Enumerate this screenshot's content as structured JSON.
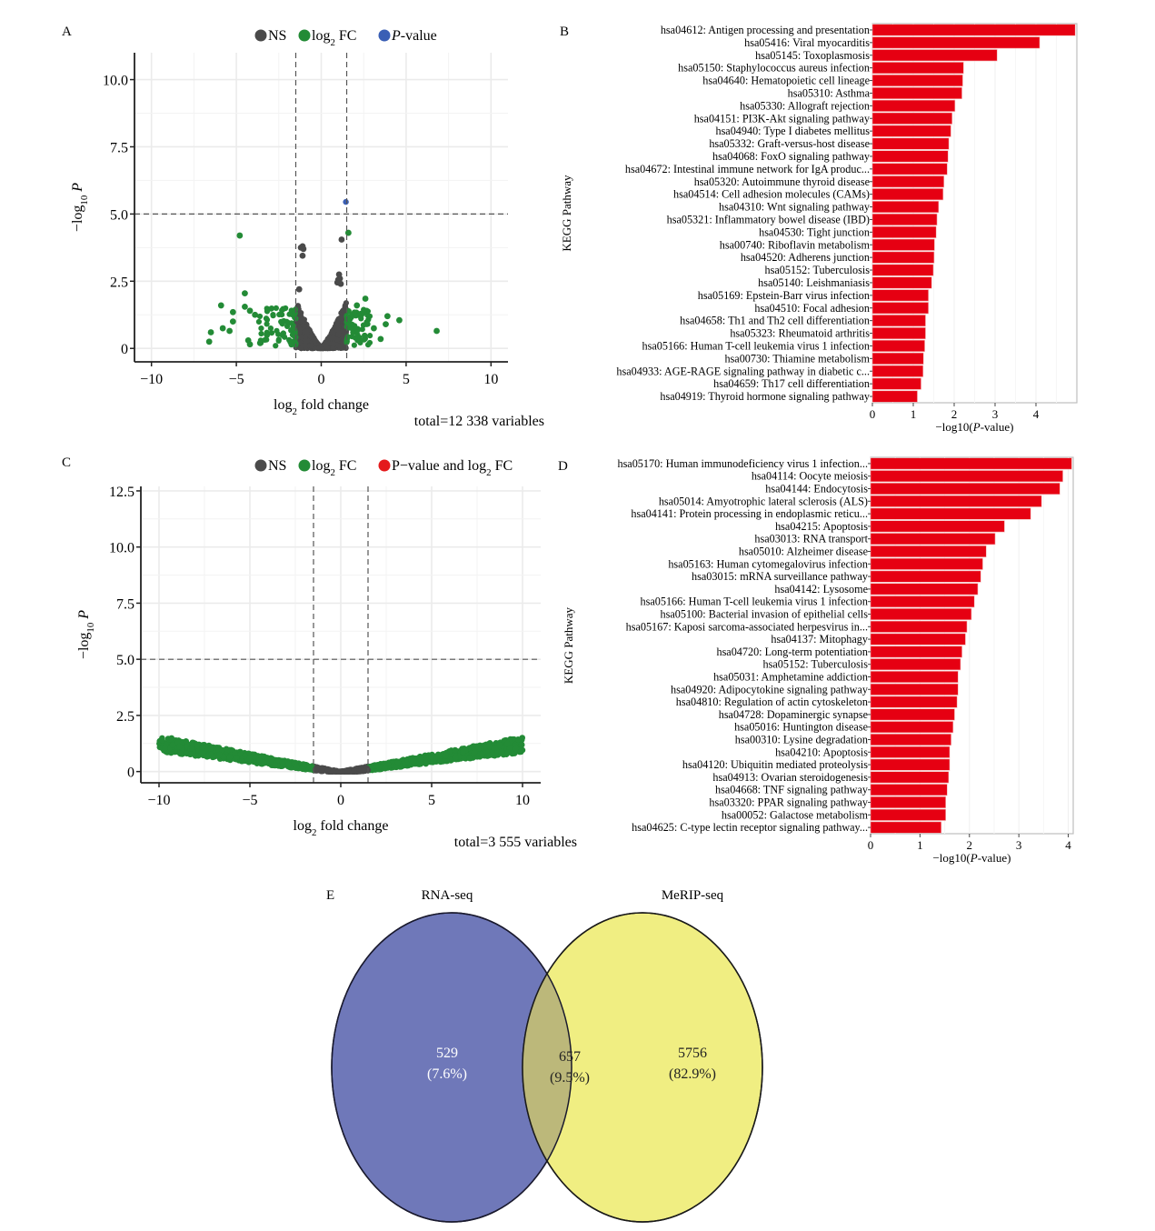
{
  "chart_data": [
    {
      "panel": "A",
      "type": "scatter",
      "subtype": "volcano",
      "legend": [
        {
          "label": "NS",
          "color": "#4a4a4a"
        },
        {
          "label": "log2 FC",
          "color": "#238b36"
        },
        {
          "label": "P-value",
          "color": "#3a5fb5"
        }
      ],
      "legend_placement": "top",
      "xlabel": "log2 fold change",
      "ylabel": "-log10 P",
      "caption": "total=12 338 variables",
      "xlim": [
        -11,
        11
      ],
      "ylim": [
        -0.5,
        11
      ],
      "xticks": [
        -10,
        -5,
        0,
        5,
        10
      ],
      "xtick_labels": [
        "−10",
        "−5",
        "0",
        "5",
        "10"
      ],
      "yticks": [
        0,
        2.5,
        5.0,
        7.5,
        10.0
      ],
      "ytick_labels": [
        "0",
        "2.5",
        "5.0",
        "7.5",
        "10.0"
      ],
      "thresholds": {
        "fc": [
          -1.5,
          1.5
        ],
        "p": 5.0
      },
      "grid": true,
      "points": {
        "ns": [
          [
            -1.1,
            3.8
          ],
          [
            -1.2,
            3.75
          ],
          [
            -1.05,
            3.7
          ],
          [
            -1.1,
            3.45
          ],
          [
            -1.3,
            2.2
          ],
          [
            1.2,
            4.05
          ],
          [
            1.05,
            2.75
          ],
          [
            1.1,
            2.6
          ],
          [
            1.0,
            2.55
          ],
          [
            1.15,
            2.4
          ],
          [
            0.95,
            2.45
          ]
        ],
        "fc": [
          [
            -4.8,
            4.2
          ],
          [
            1.6,
            4.3
          ],
          [
            -4.5,
            2.05
          ],
          [
            -5.9,
            1.6
          ],
          [
            -5.2,
            1.35
          ],
          [
            -5.2,
            1.0
          ],
          [
            -5.8,
            0.75
          ],
          [
            -5.4,
            0.65
          ],
          [
            -6.5,
            0.6
          ],
          [
            -6.6,
            0.25
          ],
          [
            -4.3,
            0.3
          ],
          [
            -4.2,
            0.15
          ],
          [
            -3.6,
            0.2
          ],
          [
            -4.5,
            1.55
          ],
          [
            -4.2,
            1.4
          ],
          [
            -3.9,
            1.25
          ],
          [
            -3.2,
            0.5
          ],
          [
            3.9,
            1.2
          ],
          [
            4.6,
            1.05
          ],
          [
            3.8,
            0.9
          ],
          [
            3.5,
            0.35
          ],
          [
            6.8,
            0.65
          ],
          [
            3.1,
            0.75
          ],
          [
            2.6,
            1.85
          ],
          [
            2.5,
            1.35
          ],
          [
            2.1,
            1.6
          ]
        ],
        "pvalue": [
          [
            1.45,
            5.45
          ]
        ]
      },
      "cloud": {
        "ns_fc_range": [
          -1.5,
          1.5
        ],
        "fc_left_range": [
          -3.5,
          -1.5
        ],
        "fc_right_range": [
          1.5,
          3.0
        ],
        "ymax_near": 1.9
      }
    },
    {
      "panel": "B",
      "type": "bar",
      "orientation": "horizontal",
      "xlabel": "−log10(P-value)",
      "ylabel": "KEGG Pathway",
      "xlim": [
        0,
        5
      ],
      "xticks": [
        0,
        1,
        2,
        3,
        4
      ],
      "bar_color": "#e60012",
      "categories": [
        "hsa04612: Antigen processing and presentation",
        "hsa05416: Viral myocarditis",
        "hsa05145: Toxoplasmosis",
        "hsa05150: Staphylococcus aureus infection",
        "hsa04640: Hematopoietic cell lineage",
        "hsa05310: Asthma",
        "hsa05330: Allograft rejection",
        "hsa04151: PI3K-Akt signaling pathway",
        "hsa04940: Type I diabetes mellitus",
        "hsa05332: Graft-versus-host disease",
        "hsa04068: FoxO signaling pathway",
        "hsa04672: Intestinal immune network for IgA produc...",
        "hsa05320: Autoimmune thyroid disease",
        "hsa04514: Cell adhesion molecules (CAMs)",
        "hsa04310: Wnt signaling pathway",
        "hsa05321: Inflammatory bowel disease (IBD)",
        "hsa04530: Tight junction",
        "hsa00740: Riboflavin metabolism",
        "hsa04520: Adherens junction",
        "hsa05152: Tuberculosis",
        "hsa05140: Leishmaniasis",
        "hsa05169: Epstein-Barr virus infection",
        "hsa04510: Focal adhesion",
        "hsa04658: Th1 and Th2 cell differentiation",
        "hsa05323: Rheumatoid arthritis",
        "hsa05166: Human T-cell leukemia virus 1 infection",
        "hsa00730: Thiamine metabolism",
        "hsa04933: AGE-RAGE signaling pathway in diabetic c...",
        "hsa04659: Th17 cell differentiation",
        "hsa04919: Thyroid hormone signaling pathway"
      ],
      "values": [
        4.96,
        4.09,
        3.05,
        2.23,
        2.21,
        2.19,
        2.02,
        1.95,
        1.92,
        1.87,
        1.85,
        1.83,
        1.75,
        1.73,
        1.62,
        1.58,
        1.56,
        1.52,
        1.51,
        1.49,
        1.45,
        1.37,
        1.37,
        1.3,
        1.3,
        1.28,
        1.25,
        1.24,
        1.19,
        1.1
      ]
    },
    {
      "panel": "C",
      "type": "scatter",
      "subtype": "volcano",
      "legend": [
        {
          "label": "NS",
          "color": "#4a4a4a"
        },
        {
          "label": "log2 FC",
          "color": "#238b36"
        },
        {
          "label": "P-value and log2 FC",
          "color": "#e41a1c"
        }
      ],
      "legend_placement": "top",
      "xlabel": "log2 fold change",
      "ylabel": "-log10 P",
      "caption": "total=3 555 variables",
      "xlim": [
        -11,
        11
      ],
      "ylim": [
        -0.5,
        12.7
      ],
      "xticks": [
        -10,
        -5,
        0,
        5,
        10
      ],
      "xtick_labels": [
        "−10",
        "−5",
        "0",
        "5",
        "10"
      ],
      "yticks": [
        0,
        2.5,
        5.0,
        7.5,
        10.0,
        12.5
      ],
      "ytick_labels": [
        "0",
        "2.5",
        "5.0",
        "7.5",
        "10.0",
        "12.5"
      ],
      "thresholds": {
        "fc": [
          -1.5,
          1.5
        ],
        "p": 5.0
      },
      "grid": true,
      "band": {
        "left_at_minus10": [
          1.2,
          1.7
        ],
        "right_at_plus10": [
          1.15,
          1.75
        ],
        "slope_left": 0.145,
        "slope_right": 0.13
      }
    },
    {
      "panel": "D",
      "type": "bar",
      "orientation": "horizontal",
      "xlabel": "−log10(P-value)",
      "ylabel": "KEGG Pathway",
      "xlim": [
        0,
        4.1
      ],
      "xticks": [
        0,
        1,
        2,
        3,
        4
      ],
      "bar_color": "#e60012",
      "categories": [
        "hsa05170: Human immunodeficiency virus 1 infection...",
        "hsa04114: Oocyte meiosis",
        "hsa04144: Endocytosis",
        "hsa05014: Amyotrophic lateral sclerosis (ALS)",
        "hsa04141: Protein processing in endoplasmic reticu...",
        "hsa04215: Apoptosis",
        "hsa03013: RNA transport",
        "hsa05010: Alzheimer disease",
        "hsa05163: Human cytomegalovirus infection",
        "hsa03015: mRNA surveillance pathway",
        "hsa04142: Lysosome",
        "hsa05166: Human T-cell leukemia virus 1 infection",
        "hsa05100: Bacterial invasion of epithelial cells",
        "hsa05167: Kaposi sarcoma-associated herpesvirus in...",
        "hsa04137: Mitophagy",
        "hsa04720: Long-term potentiation",
        "hsa05152: Tuberculosis",
        "hsa05031: Amphetamine addiction",
        "hsa04920: Adipocytokine signaling pathway",
        "hsa04810: Regulation of actin cytoskeleton",
        "hsa04728: Dopaminergic synapse",
        "hsa05016: Huntington disease",
        "hsa00310: Lysine degradation",
        "hsa04210: Apoptosis",
        "hsa04120: Ubiquitin mediated proteolysis",
        "hsa04913: Ovarian steroidogenesis",
        "hsa04668: TNF signaling pathway",
        "hsa03320: PPAR signaling pathway",
        "hsa00052: Galactose metabolism",
        "hsa04625: C-type lectin receptor signaling pathway..."
      ],
      "values": [
        4.07,
        3.89,
        3.83,
        3.46,
        3.24,
        2.71,
        2.52,
        2.34,
        2.27,
        2.23,
        2.17,
        2.1,
        2.04,
        1.95,
        1.92,
        1.85,
        1.82,
        1.77,
        1.77,
        1.75,
        1.7,
        1.67,
        1.63,
        1.6,
        1.6,
        1.58,
        1.55,
        1.52,
        1.52,
        1.43
      ]
    },
    {
      "panel": "E",
      "type": "venn",
      "sets": [
        {
          "name": "RNA-seq",
          "color": "#6f78b9"
        },
        {
          "name": "MeRIP-seq",
          "color": "#f0ee82"
        }
      ],
      "overlap_color": "#bcb87a",
      "regions": [
        {
          "key": "rna_only",
          "count": "529",
          "percent": "(7.6%)"
        },
        {
          "key": "both",
          "count": "657",
          "percent": "(9.5%)"
        },
        {
          "key": "merip_only",
          "count": "5756",
          "percent": "(82.9%)"
        }
      ]
    }
  ],
  "panel_labels": {
    "a": "A",
    "b": "B",
    "c": "C",
    "d": "D",
    "e": "E"
  }
}
